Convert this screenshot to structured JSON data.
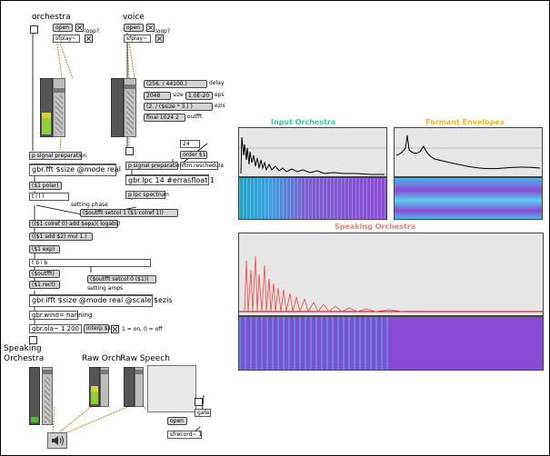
{
  "labels": {
    "orchestra": "orchestra",
    "voice": "voice",
    "loop1": "loop?",
    "loop2": "loop?",
    "speaking": "Speaking",
    "orchestra_out": "Orchestra",
    "raw_orch": "Raw Orch",
    "raw_speech": "Raw Speech",
    "toggle_note": "1 = on, 0 = off",
    "setting_phase": "setting phase",
    "setting_amps": "setting amps",
    "delay": "delay",
    "size": "size",
    "eps": "eps",
    "ezis": "ezis",
    "outfft": "outfft"
  },
  "objects": {
    "open1": "open",
    "open2": "open",
    "sfplay1": "sfplay~",
    "sfplay2": "sfplay~",
    "delay_msg": "(256. / 44100.)",
    "size_msg": "2048",
    "eps_msg": "1.0E-20",
    "ezis_msg": "(2. / ($size * 3.) )",
    "final_msg": "final 1024 2",
    "signal_prep1": "p signal preparation",
    "signal_prep2": "p signal preparation",
    "gbr_fft": "gbr.fft $size @mode real",
    "polar": "($1 polar)",
    "tttt": "t l l l",
    "outfft_setcol1": "($outfft setcol 1 ($1 colref 1))",
    "colref_eps": "(($1 colref 0) add $eps)( logabs)",
    "add_mul": "(($1 add $2) mul 1.)",
    "exp": "($1 exp)",
    "tbl": "t b l b",
    "outfft": "($outfft)",
    "rect": "($1 rect)",
    "outfft_setcol0": "($outfft setcol 0 ($1))",
    "gbr_ifft": "gbr.ifft $size @mode real @scale $ezis",
    "gbr_wind": "gbr.wind= hanning",
    "gbr_ola": "gbr.ola~ 1 200",
    "interp": "interp $1",
    "order": "order $1",
    "num24": "24",
    "ftm_reschedule": "ftm.reschedule",
    "gbr_lpc": "gbr.lpc 14 #errasfloat 1",
    "p_lpc": "p lpc spectrum",
    "open3": "open",
    "sfrecord": "sfrecord~ 1",
    "gate": "gate"
  },
  "panels": {
    "input_orchestra": "Input Orchestra",
    "formant_envelopes": "Formant Envelopes",
    "speaking_orchestra": "Speaking Orchestra"
  },
  "colors": {
    "input_title": "#3cc8a0",
    "formant_title": "#f2b620",
    "speaking_title": "#f08080",
    "speaking_trace": "#ff4040",
    "spectrogram_bg": "#8a4bd6"
  },
  "icons": {
    "speaker": "speaker-icon"
  }
}
